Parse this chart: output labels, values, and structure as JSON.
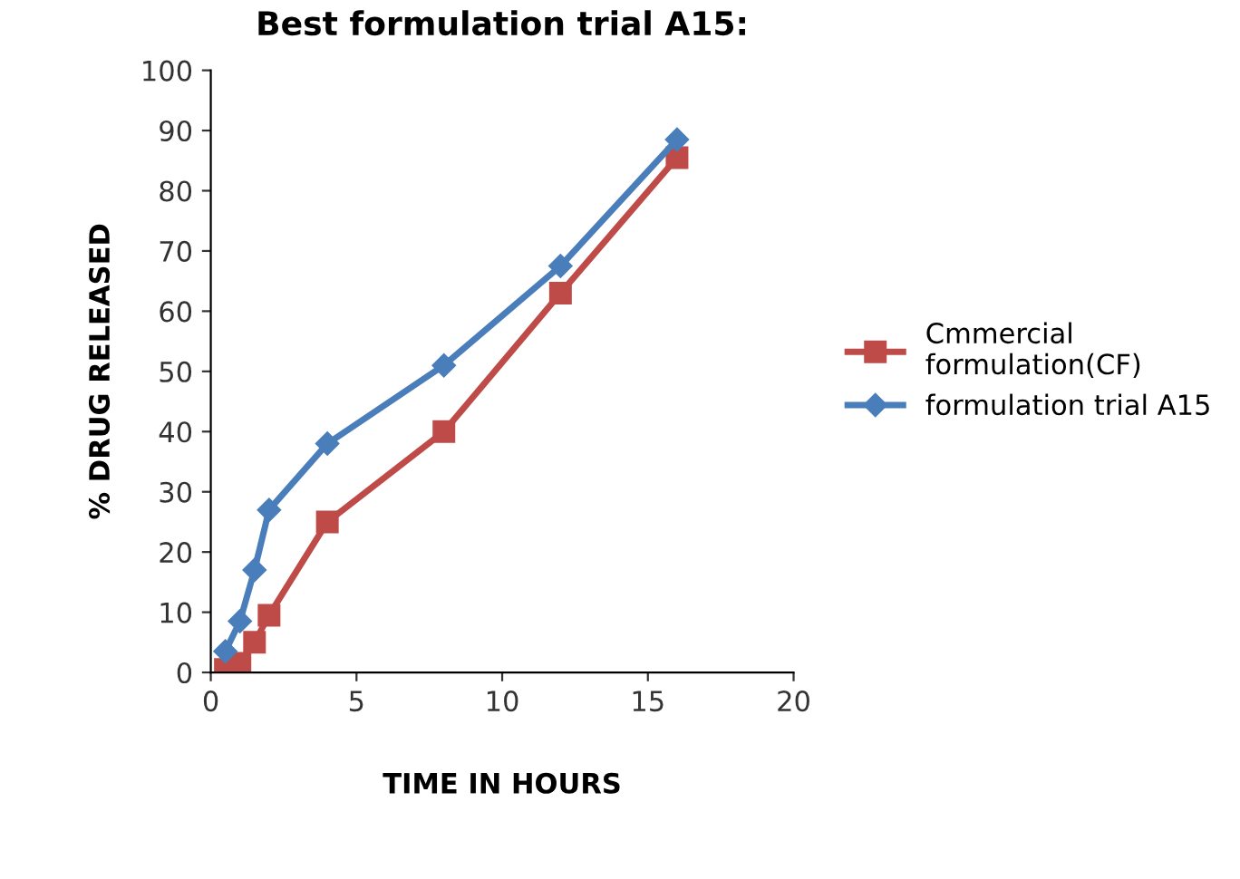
{
  "chart_data": {
    "type": "line",
    "title": "Best formulation trial A15:",
    "xlabel": "TIME IN HOURS",
    "ylabel": "% DRUG RELEASED",
    "x": [
      0.5,
      1,
      1.5,
      2,
      4,
      8,
      12,
      16
    ],
    "series": [
      {
        "name": "Cmmercial formulation(CF)",
        "color": "#be4b48",
        "marker": "square",
        "values": [
          0.5,
          1.5,
          5,
          9.5,
          25,
          40,
          63,
          85.5
        ]
      },
      {
        "name": "formulation trial A15",
        "color": "#4a7ebb",
        "marker": "diamond",
        "values": [
          3.5,
          8.5,
          17,
          27,
          38,
          51,
          67.5,
          88.5
        ]
      }
    ],
    "xlim": [
      0,
      20
    ],
    "xticks": [
      0,
      5,
      10,
      15,
      20
    ],
    "ylim": [
      0,
      100
    ],
    "yticks": [
      0,
      10,
      20,
      30,
      40,
      50,
      60,
      70,
      80,
      90,
      100
    ],
    "grid": false,
    "legend": "right",
    "line_style": "solid"
  }
}
